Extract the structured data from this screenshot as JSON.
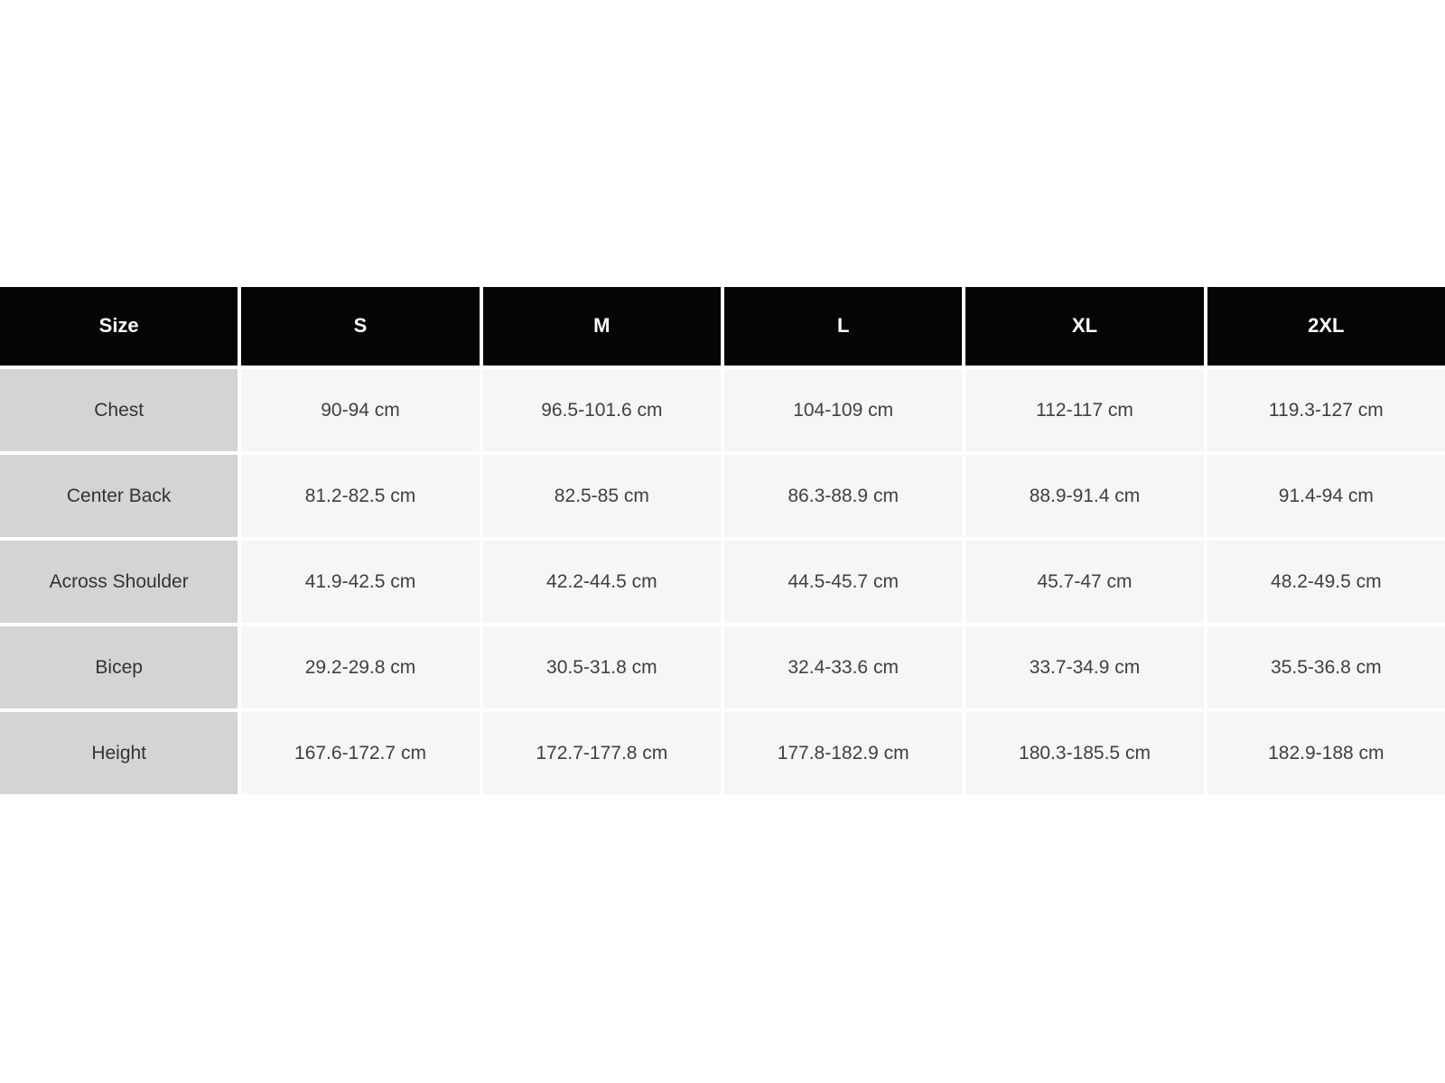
{
  "chart_data": {
    "type": "table",
    "unit": "cm",
    "columns": [
      "Size",
      "S",
      "M",
      "L",
      "XL",
      "2XL"
    ],
    "rows": [
      {
        "label": "Chest",
        "values": [
          "90-94 cm",
          "96.5-101.6 cm",
          "104-109 cm",
          "112-117 cm",
          "119.3-127 cm"
        ]
      },
      {
        "label": "Center Back",
        "values": [
          "81.2-82.5 cm",
          "82.5-85 cm",
          "86.3-88.9 cm",
          "88.9-91.4 cm",
          "91.4-94 cm"
        ]
      },
      {
        "label": "Across Shoulder",
        "values": [
          "41.9-42.5 cm",
          "42.2-44.5 cm",
          "44.5-45.7 cm",
          "45.7-47 cm",
          "48.2-49.5 cm"
        ]
      },
      {
        "label": "Bicep",
        "values": [
          "29.2-29.8 cm",
          "30.5-31.8 cm",
          "32.4-33.6 cm",
          "33.7-34.9 cm",
          "35.5-36.8 cm"
        ]
      },
      {
        "label": "Height",
        "values": [
          "167.6-172.7 cm",
          "172.7-177.8 cm",
          "177.8-182.9 cm",
          "180.3-185.5 cm",
          "182.9-188 cm"
        ]
      }
    ],
    "layout": {
      "legend": "none",
      "grid": "off",
      "header_row": "top",
      "label_column": "left"
    },
    "colors": {
      "page_bg": "#ffffff",
      "header_bg": "#050505",
      "header_text": "#ffffff",
      "row_label_bg": "#d4d4d4",
      "value_bg": "#f6f6f6",
      "label_text": "#333333",
      "value_text": "#404040"
    }
  }
}
